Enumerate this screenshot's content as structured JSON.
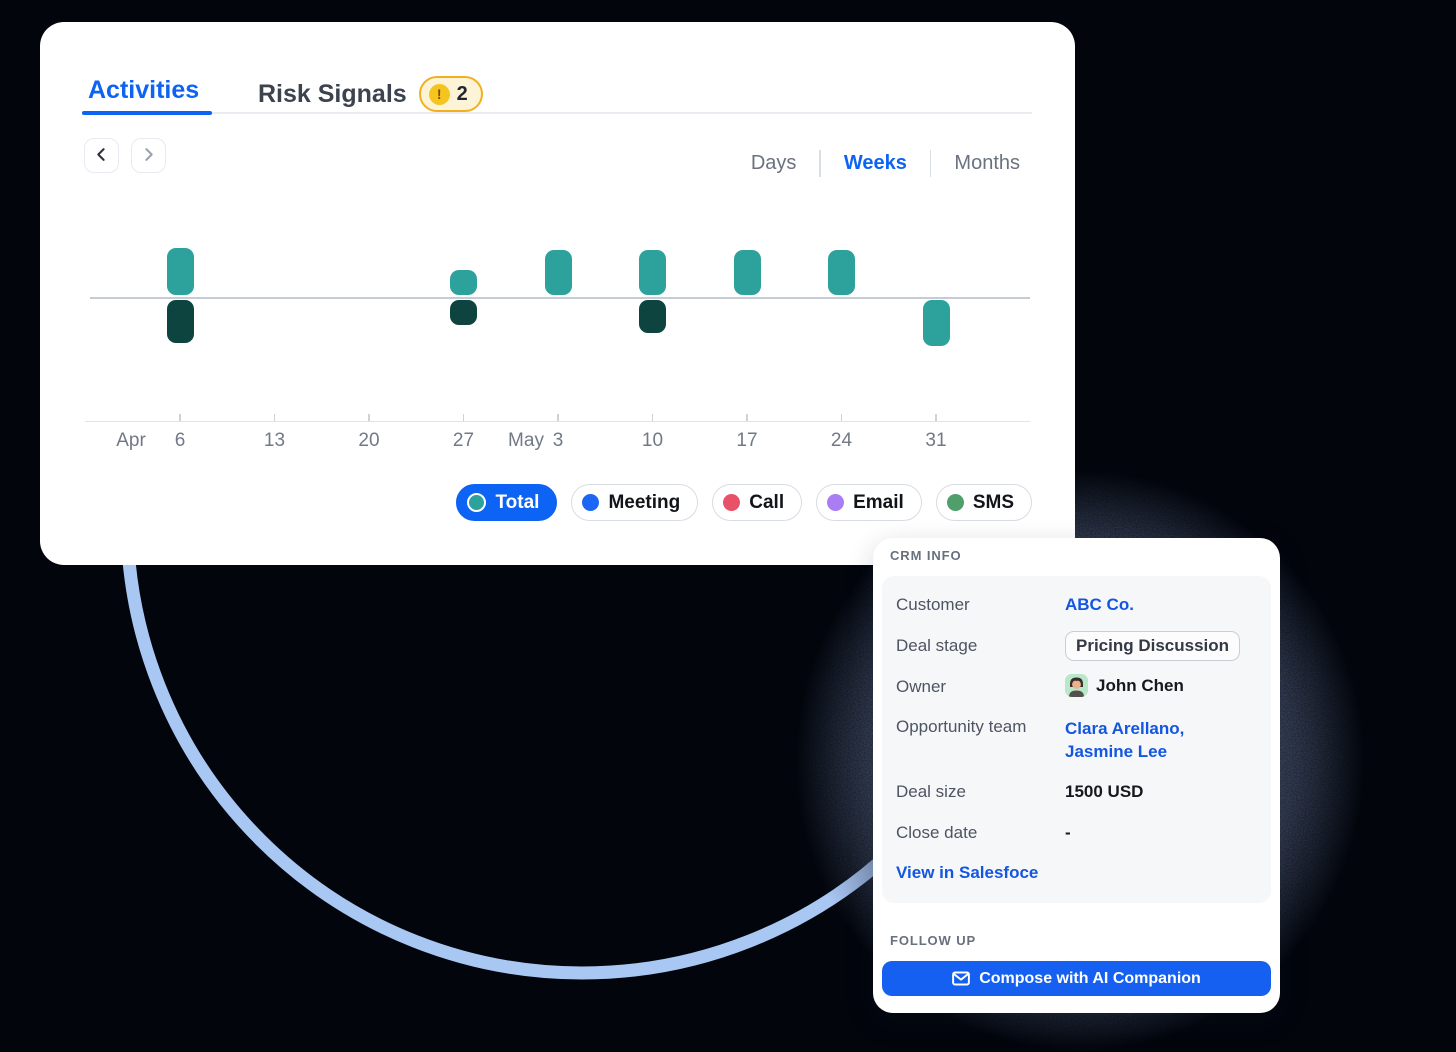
{
  "colors": {
    "accent_blue": "#0d63f3",
    "link_blue": "#1356e0",
    "button_blue": "#1560f0",
    "teal": "#2da19b",
    "dark_teal": "#0e443f",
    "arc_blue": "#a9c7f3",
    "badge_bg": "#fdf4d7",
    "badge_border": "#f2b01e",
    "badge_icon_yellow": "#f5c51d",
    "text_dark": "#15181e",
    "text_gray": "#6a7280"
  },
  "header": {
    "tab_activities": "Activities",
    "tab_risk_signals": "Risk Signals",
    "risk_badge_count": "2"
  },
  "range": {
    "days": "Days",
    "weeks": "Weeks",
    "months": "Months",
    "selected": "Weeks"
  },
  "chart_data": {
    "type": "bar",
    "subtype": "diverging weekly activity timeline",
    "categories": [
      "Apr 6",
      "Apr 13",
      "Apr 20",
      "Apr 27",
      "May 3",
      "May 10",
      "May 17",
      "May 24",
      "May 31"
    ],
    "tick_days": [
      "6",
      "13",
      "20",
      "27",
      "3",
      "10",
      "17",
      "24",
      "31"
    ],
    "month_prefix": [
      {
        "tick_index": 0,
        "label": "Apr"
      },
      {
        "tick_index": 4,
        "label": "May"
      }
    ],
    "series": [
      {
        "name": "above-line-teal",
        "color": "#2da19b",
        "values": [
          47,
          0,
          0,
          25,
          45,
          45,
          45,
          45,
          0
        ]
      },
      {
        "name": "below-line-dark",
        "color": "#0e443f",
        "values": [
          -43,
          0,
          0,
          -25,
          0,
          -33,
          0,
          0,
          0
        ]
      },
      {
        "name": "below-line-teal",
        "color": "#2da19b",
        "values": [
          0,
          0,
          0,
          0,
          0,
          0,
          0,
          0,
          -46
        ]
      }
    ],
    "value_unit": "relative bar height in px (no y-axis labels shown in UI)",
    "grid": false,
    "legend_position": "bottom-right"
  },
  "legend": [
    {
      "label": "Total",
      "dot_color": "#2da19b",
      "selected": true
    },
    {
      "label": "Meeting",
      "dot_color": "#1c66f5",
      "selected": false
    },
    {
      "label": "Call",
      "dot_color": "#e85269",
      "selected": false
    },
    {
      "label": "Email",
      "dot_color": "#a97ef5",
      "selected": false
    },
    {
      "label": "SMS",
      "dot_color": "#4f9e6b",
      "selected": false
    }
  ],
  "crm": {
    "section_title": "CRM INFO",
    "customer_label": "Customer",
    "customer_value": "ABC Co.",
    "deal_stage_label": "Deal stage",
    "deal_stage_value": "Pricing Discussion",
    "owner_label": "Owner",
    "owner_value": "John Chen",
    "team_label": "Opportunity team",
    "team_value": "Clara Arellano, Jasmine Lee",
    "deal_size_label": "Deal size",
    "deal_size_value": "1500 USD",
    "close_date_label": "Close date",
    "close_date_value": "-",
    "view_link": "View in Salesfoce",
    "follow_up_title": "FOLLOW UP",
    "compose_button": "Compose with AI Companion"
  }
}
